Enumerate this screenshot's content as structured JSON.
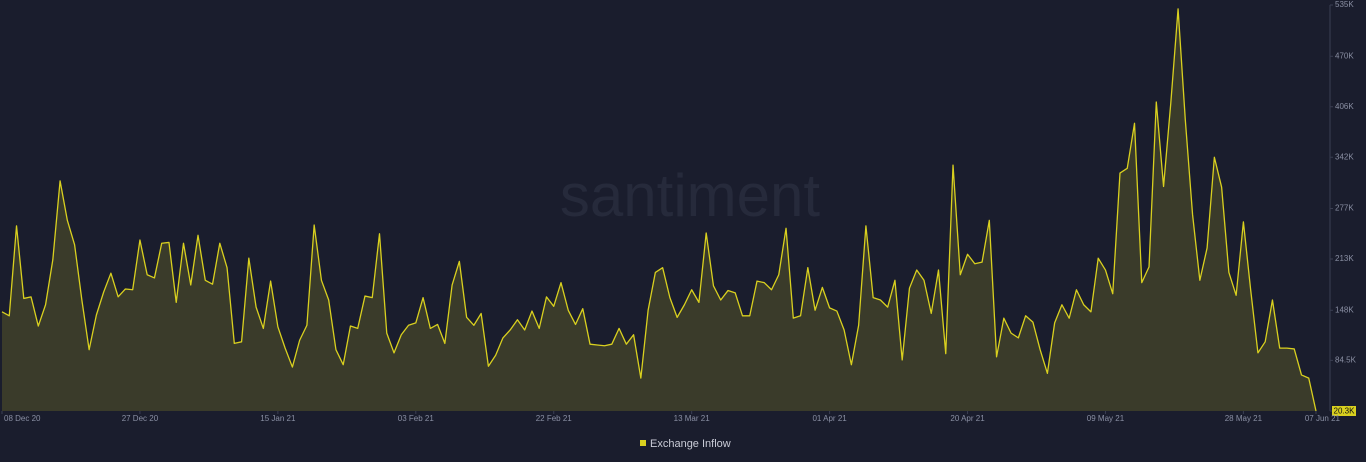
{
  "chart_data": {
    "type": "area",
    "watermark": "santiment",
    "series": [
      {
        "name": "Exchange Inflow",
        "color": "#d9d01f",
        "values": [
          146,
          141,
          255,
          163,
          165,
          128,
          155,
          212,
          312,
          262,
          231,
          161,
          98,
          142,
          171,
          195,
          165,
          175,
          174,
          237,
          193,
          189,
          233,
          234,
          158,
          233,
          180,
          243,
          186,
          181,
          233,
          202,
          106,
          108,
          214,
          152,
          125,
          185,
          127,
          100,
          76,
          110,
          129,
          256,
          186,
          161,
          98,
          79,
          128,
          125,
          166,
          164,
          245,
          119,
          94,
          117,
          129,
          132,
          164,
          125,
          130,
          106,
          180,
          210,
          139,
          129,
          144,
          77,
          91,
          113,
          123,
          136,
          123,
          147,
          125,
          165,
          153,
          183,
          148,
          130,
          150,
          105,
          104,
          103,
          105,
          125,
          105,
          117,
          62,
          148,
          196,
          202,
          164,
          139,
          155,
          174,
          158,
          246,
          179,
          161,
          173,
          170,
          141,
          141,
          185,
          183,
          174,
          193,
          252,
          138,
          141,
          202,
          148,
          177,
          151,
          147,
          123,
          79,
          129,
          255,
          164,
          161,
          152,
          186,
          85,
          176,
          199,
          186,
          144,
          199,
          93,
          332,
          193,
          219,
          207,
          209,
          262,
          89,
          138,
          119,
          113,
          141,
          133,
          98,
          68,
          132,
          155,
          138,
          174,
          155,
          146,
          214,
          199,
          169,
          322,
          328,
          385,
          183,
          203,
          412,
          305,
          411,
          530,
          389,
          269,
          186,
          227,
          342,
          304,
          196,
          167,
          260,
          174,
          94,
          108,
          161,
          100,
          100,
          99,
          66,
          62,
          20.3
        ]
      }
    ],
    "x": [
      "2020-12-08",
      "2020-12-09",
      "2020-12-10",
      "2020-12-11",
      "2020-12-12",
      "2020-12-13",
      "2020-12-14",
      "2020-12-15",
      "2020-12-16",
      "2020-12-17",
      "2020-12-18",
      "2020-12-19",
      "2020-12-20",
      "2020-12-21",
      "2020-12-22",
      "2020-12-23",
      "2020-12-24",
      "2020-12-25",
      "2020-12-26",
      "2020-12-27",
      "2020-12-28",
      "2020-12-29",
      "2020-12-30",
      "2020-12-31",
      "2021-01-01",
      "2021-01-02",
      "2021-01-03",
      "2021-01-04",
      "2021-01-05",
      "2021-01-06",
      "2021-01-07",
      "2021-01-08",
      "2021-01-09",
      "2021-01-10",
      "2021-01-11",
      "2021-01-12",
      "2021-01-13",
      "2021-01-14",
      "2021-01-15",
      "2021-01-16",
      "2021-01-17",
      "2021-01-18",
      "2021-01-19",
      "2021-01-20",
      "2021-01-21",
      "2021-01-22",
      "2021-01-23",
      "2021-01-24",
      "2021-01-25",
      "2021-01-26",
      "2021-01-27",
      "2021-01-28",
      "2021-01-29",
      "2021-01-30",
      "2021-01-31",
      "2021-02-01",
      "2021-02-02",
      "2021-02-03",
      "2021-02-04",
      "2021-02-05",
      "2021-02-06",
      "2021-02-07",
      "2021-02-08",
      "2021-02-09",
      "2021-02-10",
      "2021-02-11",
      "2021-02-12",
      "2021-02-13",
      "2021-02-14",
      "2021-02-15",
      "2021-02-16",
      "2021-02-17",
      "2021-02-18",
      "2021-02-19",
      "2021-02-20",
      "2021-02-21",
      "2021-02-22",
      "2021-02-23",
      "2021-02-24",
      "2021-02-25",
      "2021-02-26",
      "2021-02-27",
      "2021-02-28",
      "2021-03-01",
      "2021-03-02",
      "2021-03-03",
      "2021-03-04",
      "2021-03-05",
      "2021-03-06",
      "2021-03-07",
      "2021-03-08",
      "2021-03-09",
      "2021-03-10",
      "2021-03-11",
      "2021-03-12",
      "2021-03-13",
      "2021-03-14",
      "2021-03-15",
      "2021-03-16",
      "2021-03-17",
      "2021-03-18",
      "2021-03-19",
      "2021-03-20",
      "2021-03-21",
      "2021-03-22",
      "2021-03-23",
      "2021-03-24",
      "2021-03-25",
      "2021-03-26",
      "2021-03-27",
      "2021-03-28",
      "2021-03-29",
      "2021-03-30",
      "2021-03-31",
      "2021-04-01",
      "2021-04-02",
      "2021-04-03",
      "2021-04-04",
      "2021-04-05",
      "2021-04-06",
      "2021-04-07",
      "2021-04-08",
      "2021-04-09",
      "2021-04-10",
      "2021-04-11",
      "2021-04-12",
      "2021-04-13",
      "2021-04-14",
      "2021-04-15",
      "2021-04-16",
      "2021-04-17",
      "2021-04-18",
      "2021-04-19",
      "2021-04-20",
      "2021-04-21",
      "2021-04-22",
      "2021-04-23",
      "2021-04-24",
      "2021-04-25",
      "2021-04-26",
      "2021-04-27",
      "2021-04-28",
      "2021-04-29",
      "2021-04-30",
      "2021-05-01",
      "2021-05-02",
      "2021-05-03",
      "2021-05-04",
      "2021-05-05",
      "2021-05-06",
      "2021-05-07",
      "2021-05-08",
      "2021-05-09",
      "2021-05-10",
      "2021-05-11",
      "2021-05-12",
      "2021-05-13",
      "2021-05-14",
      "2021-05-15",
      "2021-05-16",
      "2021-05-17",
      "2021-05-18",
      "2021-05-19",
      "2021-05-20",
      "2021-05-21",
      "2021-05-22",
      "2021-05-23",
      "2021-05-24",
      "2021-05-25",
      "2021-05-26",
      "2021-05-27",
      "2021-05-28",
      "2021-05-29",
      "2021-05-30",
      "2021-05-31",
      "2021-06-01",
      "2021-06-02",
      "2021-06-03",
      "2021-06-04",
      "2021-06-05",
      "2021-06-06",
      "2021-06-07"
    ],
    "xticks": [
      {
        "value": "2020-12-08",
        "label": "08 Dec 20"
      },
      {
        "value": "2020-12-27",
        "label": "27 Dec 20"
      },
      {
        "value": "2021-01-15",
        "label": "15 Jan 21"
      },
      {
        "value": "2021-02-03",
        "label": "03 Feb 21"
      },
      {
        "value": "2021-02-22",
        "label": "22 Feb 21"
      },
      {
        "value": "2021-03-13",
        "label": "13 Mar 21"
      },
      {
        "value": "2021-04-01",
        "label": "01 Apr 21"
      },
      {
        "value": "2021-04-20",
        "label": "20 Apr 21"
      },
      {
        "value": "2021-05-09",
        "label": "09 May 21"
      },
      {
        "value": "2021-05-28",
        "label": "28 May 21"
      },
      {
        "value": "2021-06-07",
        "label": "07 Jun 21"
      }
    ],
    "ylim": [
      20.3,
      535
    ],
    "yticks": [
      {
        "value": 20.3,
        "label": "20.3K"
      },
      {
        "value": 84.5,
        "label": "84.5K"
      },
      {
        "value": 148,
        "label": "148K"
      },
      {
        "value": 213,
        "label": "213K"
      },
      {
        "value": 277,
        "label": "277K"
      },
      {
        "value": 342,
        "label": "342K"
      },
      {
        "value": 406,
        "label": "406K"
      },
      {
        "value": 470,
        "label": "470K"
      },
      {
        "value": 535,
        "label": "535K"
      }
    ]
  }
}
